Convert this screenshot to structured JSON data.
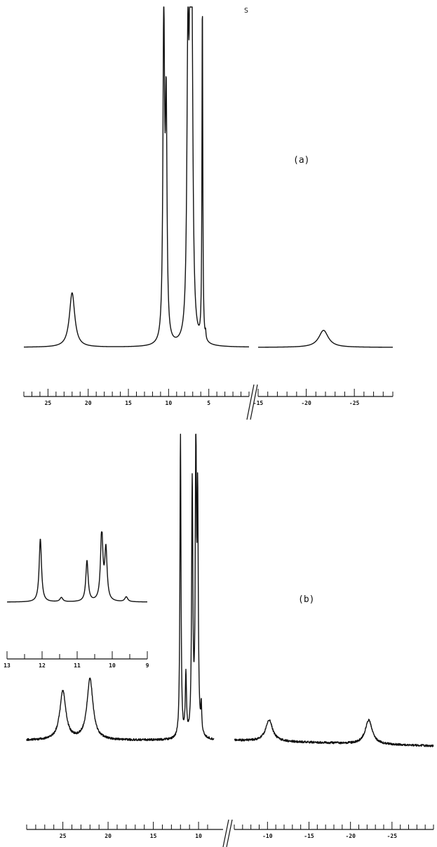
{
  "chart_data": [
    {
      "type": "line",
      "panel_label": "(a)",
      "peak_annotation": "S",
      "segments": [
        {
          "x_range": [
            28,
            0
          ],
          "ticks": [
            25,
            20,
            15,
            10,
            5
          ],
          "peaks": [
            {
              "x": 22.0,
              "height": 0.16,
              "width": 0.4
            },
            {
              "x": 10.6,
              "height": 0.96,
              "width": 0.12
            },
            {
              "x": 10.3,
              "height": 0.66,
              "width": 0.12
            },
            {
              "x": 7.6,
              "height": 0.8,
              "width": 0.15
            },
            {
              "x": 7.3,
              "height": 1.0,
              "width": 0.12
            },
            {
              "x": 7.1,
              "height": 0.78,
              "width": 0.15
            },
            {
              "x": 5.8,
              "height": 1.0,
              "width": 0.06
            },
            {
              "x": 5.4,
              "height": 0.02,
              "width": 0.05
            }
          ]
        },
        {
          "x_range": [
            -15,
            -29
          ],
          "ticks": [
            -15,
            -20,
            -25
          ],
          "peaks": [
            {
              "x": -21.8,
              "height": 0.05,
              "width": 0.6
            }
          ]
        }
      ]
    },
    {
      "type": "line",
      "panel_label": "(b)",
      "segments": [
        {
          "x_range": [
            29,
            8.3
          ],
          "ticks": [
            25,
            20,
            15,
            10
          ],
          "peaks": [
            {
              "x": 25.0,
              "height": 0.16,
              "width": 0.4
            },
            {
              "x": 22.0,
              "height": 0.2,
              "width": 0.4
            },
            {
              "x": 12.0,
              "height": 1.0,
              "width": 0.07
            },
            {
              "x": 11.4,
              "height": 0.2,
              "width": 0.08
            },
            {
              "x": 10.7,
              "height": 0.83,
              "width": 0.08
            },
            {
              "x": 10.3,
              "height": 1.0,
              "width": 0.07
            },
            {
              "x": 10.1,
              "height": 0.75,
              "width": 0.08
            },
            {
              "x": 9.7,
              "height": 0.09,
              "width": 0.06
            }
          ]
        },
        {
          "x_range": [
            -6,
            -30
          ],
          "ticks": [
            -10,
            -15,
            -20,
            -25
          ],
          "peaks": [
            {
              "x": -10.2,
              "height": 0.07,
              "width": 0.5
            },
            {
              "x": -22.2,
              "height": 0.08,
              "width": 0.5
            }
          ]
        }
      ],
      "inset": {
        "x_range": [
          13.0,
          9.0
        ],
        "ticks": [
          13,
          12,
          11,
          10,
          9
        ],
        "peaks": [
          {
            "x": 12.05,
            "height": 0.9,
            "width": 0.04
          },
          {
            "x": 11.45,
            "height": 0.06,
            "width": 0.05
          },
          {
            "x": 10.72,
            "height": 0.58,
            "width": 0.04
          },
          {
            "x": 10.3,
            "height": 1.0,
            "width": 0.04
          },
          {
            "x": 10.18,
            "height": 0.72,
            "width": 0.04
          },
          {
            "x": 9.6,
            "height": 0.07,
            "width": 0.05
          }
        ]
      }
    }
  ]
}
